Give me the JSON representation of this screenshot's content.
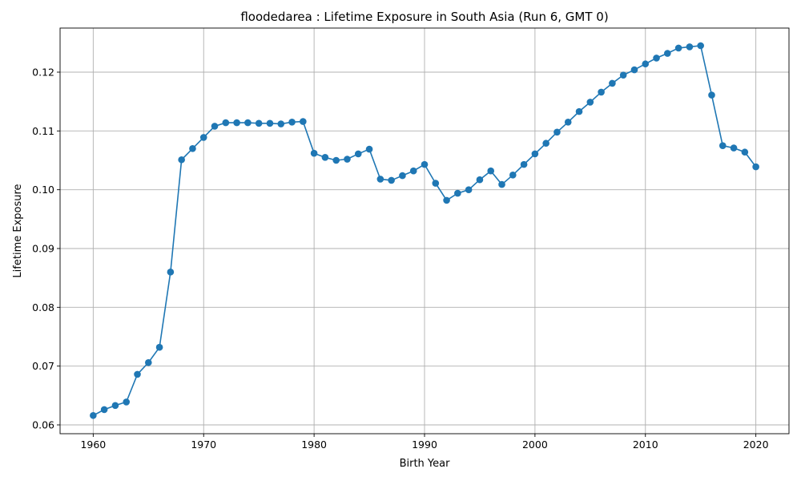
{
  "chart_data": {
    "type": "line",
    "title": "floodedarea : Lifetime Exposure in South Asia (Run 6, GMT 0)",
    "xlabel": "Birth Year",
    "ylabel": "Lifetime Exposure",
    "xlim": [
      1957,
      2023
    ],
    "ylim": [
      0.0585,
      0.1275
    ],
    "xticks": [
      1960,
      1970,
      1980,
      1990,
      2000,
      2010,
      2020
    ],
    "xtick_labels": [
      "1960",
      "1970",
      "1980",
      "1990",
      "2000",
      "2010",
      "2020"
    ],
    "yticks": [
      0.06,
      0.07,
      0.08,
      0.09,
      0.1,
      0.11,
      0.12
    ],
    "ytick_labels": [
      "0.06",
      "0.07",
      "0.08",
      "0.09",
      "0.10",
      "0.11",
      "0.12"
    ],
    "grid": true,
    "color": "#1f77b4",
    "marker": "circle",
    "series": [
      {
        "x": [
          1960,
          1961,
          1962,
          1963,
          1964,
          1965,
          1966,
          1967,
          1968,
          1969,
          1970,
          1971,
          1972,
          1973,
          1974,
          1975,
          1976,
          1977,
          1978,
          1979,
          1980,
          1981,
          1982,
          1983,
          1984,
          1985,
          1986,
          1987,
          1988,
          1989,
          1990,
          1991,
          1992,
          1993,
          1994,
          1995,
          1996,
          1997,
          1998,
          1999,
          2000,
          2001,
          2002,
          2003,
          2004,
          2005,
          2006,
          2007,
          2008,
          2009,
          2010,
          2011,
          2012,
          2013,
          2014,
          2015,
          2016,
          2017,
          2018,
          2019,
          2020
        ],
        "y": [
          0.0616,
          0.0626,
          0.0633,
          0.0639,
          0.0686,
          0.0706,
          0.0732,
          0.086,
          0.1051,
          0.107,
          0.1089,
          0.1108,
          0.1114,
          0.1114,
          0.1114,
          0.1113,
          0.1113,
          0.1112,
          0.1115,
          0.1116,
          0.1062,
          0.1055,
          0.105,
          0.1052,
          0.1061,
          0.1069,
          0.1018,
          0.1016,
          0.1024,
          0.1032,
          0.1043,
          0.1011,
          0.0982,
          0.0994,
          0.1,
          0.1017,
          0.1032,
          0.1009,
          0.1025,
          0.1043,
          0.1061,
          0.1079,
          0.1098,
          0.1115,
          0.1133,
          0.1149,
          0.1166,
          0.1181,
          0.1195,
          0.1204,
          0.1214,
          0.1224,
          0.1232,
          0.1241,
          0.1243,
          0.1245,
          0.1161,
          0.1075,
          0.1071,
          0.1064,
          0.1039
        ]
      }
    ]
  }
}
